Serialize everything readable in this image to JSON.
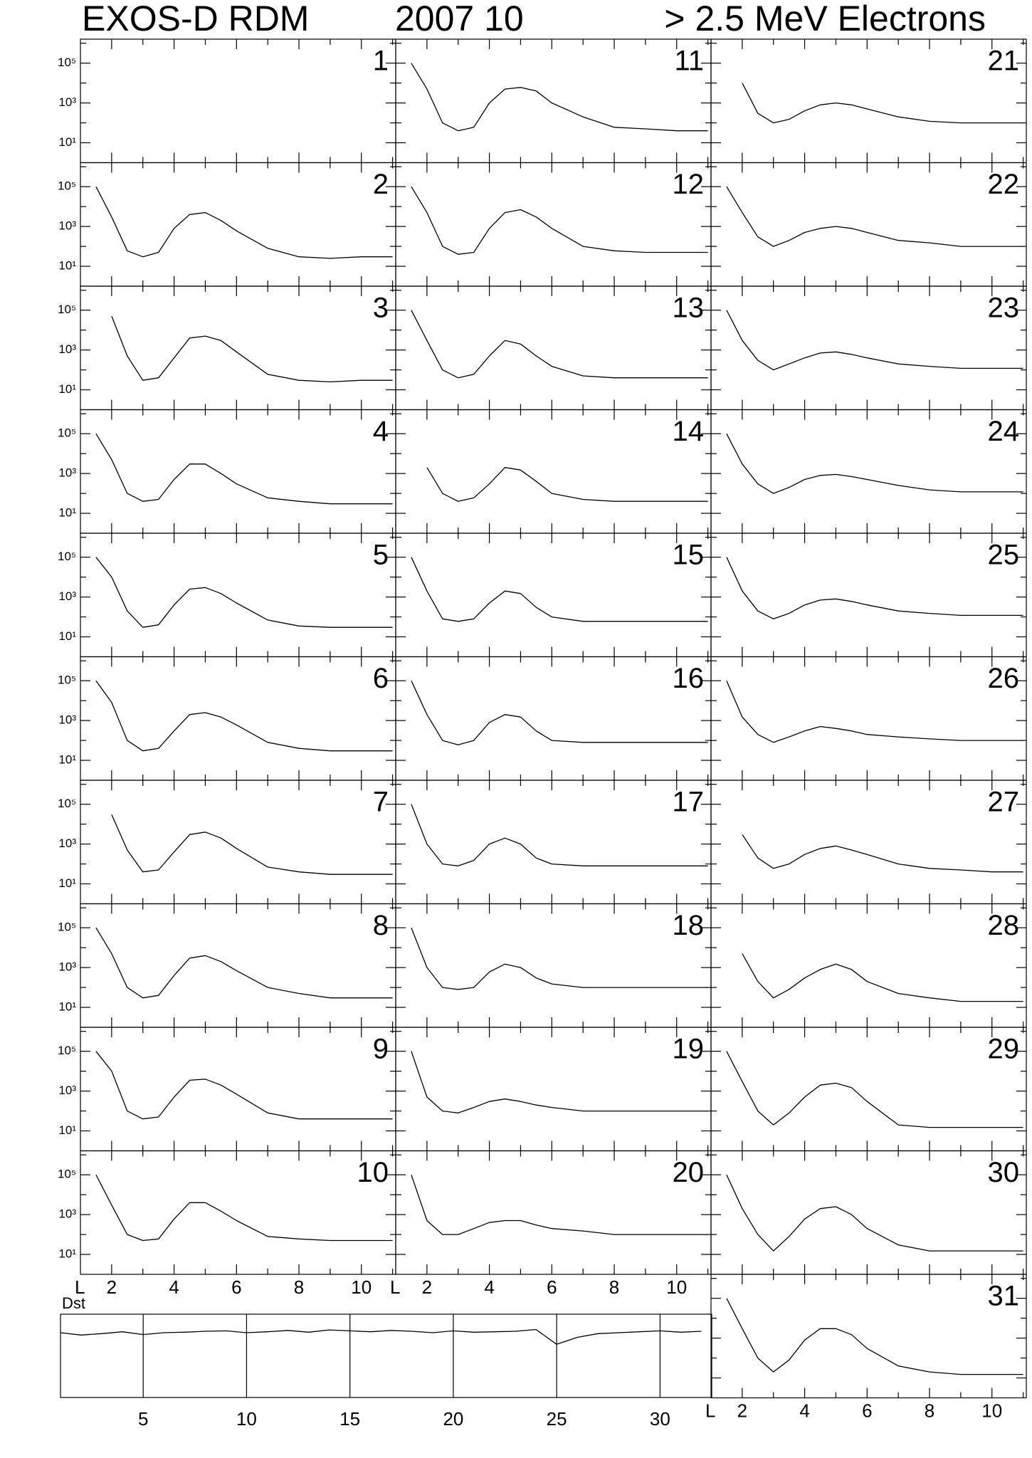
{
  "header": {
    "left": "EXOS-D RDM",
    "center": "2007   10",
    "right": "> 2.5  MeV Electrons"
  },
  "chart_data": {
    "type": "line",
    "xlabel": "L",
    "y_log": true,
    "color": "#000000",
    "xlim": [
      1,
      11.1
    ],
    "xticks": [
      2,
      4,
      6,
      8,
      10
    ],
    "minor_xticks": [
      3,
      5,
      7,
      9,
      11
    ],
    "ylim": [
      1,
      1600000
    ],
    "yticks": [
      {
        "value": 10,
        "label": "10¹"
      },
      {
        "value": 1000,
        "label": "10³"
      },
      {
        "value": 100000,
        "label": "10⁵"
      }
    ],
    "minor_yticks": [
      100,
      10000,
      1000000
    ],
    "x": [
      1.5,
      2,
      2.5,
      3,
      3.5,
      4,
      4.5,
      5,
      5.5,
      6,
      7,
      8,
      9,
      10,
      11
    ],
    "panels": [
      {
        "title": "1",
        "values": [
          null,
          null,
          null,
          null,
          null,
          null,
          null,
          null,
          null,
          null,
          null,
          null,
          null,
          null,
          null
        ]
      },
      {
        "title": "2",
        "values": [
          100000,
          3000,
          60,
          30,
          50,
          800,
          4000,
          5000,
          2000,
          600,
          80,
          30,
          25,
          30,
          30
        ]
      },
      {
        "title": "3",
        "values": [
          null,
          50000,
          500,
          30,
          40,
          400,
          4000,
          5000,
          3000,
          800,
          60,
          30,
          25,
          30,
          30
        ]
      },
      {
        "title": "4",
        "values": [
          100000,
          5000,
          100,
          40,
          50,
          500,
          3000,
          3000,
          1000,
          300,
          60,
          40,
          30,
          30,
          30
        ]
      },
      {
        "title": "5",
        "values": [
          100000,
          10000,
          200,
          30,
          40,
          400,
          2500,
          3000,
          1500,
          500,
          70,
          35,
          30,
          30,
          30
        ]
      },
      {
        "title": "6",
        "values": [
          100000,
          8000,
          100,
          30,
          40,
          300,
          2000,
          2500,
          1500,
          600,
          80,
          40,
          30,
          30,
          30
        ]
      },
      {
        "title": "7",
        "values": [
          null,
          30000,
          500,
          40,
          50,
          400,
          3000,
          4000,
          2000,
          600,
          70,
          40,
          30,
          30,
          30
        ]
      },
      {
        "title": "8",
        "values": [
          100000,
          5000,
          100,
          30,
          40,
          400,
          3000,
          4000,
          2000,
          700,
          100,
          50,
          30,
          30,
          30
        ]
      },
      {
        "title": "9",
        "values": [
          100000,
          10000,
          100,
          40,
          50,
          500,
          3500,
          4000,
          2000,
          700,
          80,
          40,
          40,
          40,
          40
        ]
      },
      {
        "title": "10",
        "values": [
          100000,
          3000,
          100,
          50,
          60,
          600,
          4000,
          4000,
          1500,
          500,
          80,
          60,
          50,
          50,
          50
        ]
      },
      {
        "title": "11",
        "values": [
          100000,
          5000,
          100,
          40,
          60,
          1000,
          5000,
          6000,
          4000,
          1000,
          200,
          60,
          50,
          40,
          40
        ]
      },
      {
        "title": "12",
        "values": [
          100000,
          5000,
          100,
          40,
          50,
          800,
          5000,
          7000,
          3000,
          800,
          100,
          60,
          50,
          50,
          50
        ]
      },
      {
        "title": "13",
        "values": [
          100000,
          3000,
          100,
          40,
          60,
          500,
          3000,
          2000,
          500,
          150,
          50,
          40,
          40,
          40,
          40
        ]
      },
      {
        "title": "14",
        "values": [
          null,
          2000,
          100,
          40,
          60,
          300,
          2000,
          1500,
          400,
          100,
          50,
          40,
          40,
          40,
          40
        ]
      },
      {
        "title": "15",
        "values": [
          100000,
          2000,
          80,
          60,
          80,
          500,
          2000,
          1500,
          300,
          100,
          60,
          60,
          60,
          60,
          60
        ]
      },
      {
        "title": "16",
        "values": [
          100000,
          2000,
          100,
          60,
          100,
          800,
          2000,
          1500,
          300,
          100,
          80,
          80,
          80,
          80,
          80
        ]
      },
      {
        "title": "17",
        "values": [
          100000,
          1000,
          100,
          80,
          150,
          1000,
          2000,
          1000,
          200,
          100,
          80,
          80,
          80,
          80,
          80
        ]
      },
      {
        "title": "18",
        "values": [
          100000,
          1000,
          100,
          80,
          100,
          600,
          1500,
          1000,
          300,
          150,
          100,
          100,
          100,
          100,
          100
        ]
      },
      {
        "title": "19",
        "values": [
          100000,
          500,
          100,
          80,
          150,
          300,
          400,
          300,
          200,
          150,
          100,
          100,
          100,
          100,
          100
        ]
      },
      {
        "title": "20",
        "values": [
          100000,
          500,
          100,
          100,
          200,
          400,
          500,
          500,
          300,
          200,
          150,
          100,
          100,
          100,
          100
        ]
      },
      {
        "title": "21",
        "values": [
          null,
          10000,
          300,
          100,
          150,
          400,
          800,
          1000,
          800,
          500,
          200,
          120,
          100,
          100,
          100
        ]
      },
      {
        "title": "22",
        "values": [
          100000,
          5000,
          300,
          100,
          200,
          500,
          800,
          1000,
          800,
          500,
          200,
          150,
          100,
          100,
          100
        ]
      },
      {
        "title": "23",
        "values": [
          100000,
          3000,
          300,
          100,
          200,
          400,
          700,
          800,
          600,
          400,
          200,
          150,
          120,
          120,
          120
        ]
      },
      {
        "title": "24",
        "values": [
          100000,
          3000,
          300,
          100,
          200,
          500,
          800,
          900,
          700,
          500,
          250,
          150,
          120,
          120,
          120
        ]
      },
      {
        "title": "25",
        "values": [
          100000,
          2000,
          200,
          80,
          150,
          400,
          700,
          800,
          600,
          400,
          200,
          150,
          120,
          120,
          120
        ]
      },
      {
        "title": "26",
        "values": [
          100000,
          1500,
          200,
          80,
          150,
          300,
          500,
          400,
          300,
          200,
          150,
          120,
          100,
          100,
          100
        ]
      },
      {
        "title": "27",
        "values": [
          null,
          3000,
          200,
          60,
          100,
          300,
          600,
          800,
          500,
          300,
          100,
          60,
          50,
          40,
          40
        ]
      },
      {
        "title": "28",
        "values": [
          null,
          5000,
          200,
          30,
          80,
          300,
          800,
          1500,
          800,
          200,
          50,
          30,
          20,
          20,
          20
        ]
      },
      {
        "title": "29",
        "values": [
          100000,
          3000,
          100,
          20,
          80,
          500,
          2000,
          2500,
          1500,
          300,
          20,
          15,
          15,
          15,
          15
        ]
      },
      {
        "title": "30",
        "values": [
          100000,
          2000,
          100,
          15,
          80,
          600,
          2000,
          2500,
          1000,
          200,
          30,
          15,
          15,
          15,
          15
        ]
      },
      {
        "title": "31",
        "values": [
          100000,
          3000,
          100,
          20,
          80,
          800,
          3000,
          3000,
          1500,
          300,
          40,
          20,
          15,
          15,
          15
        ]
      }
    ],
    "dst": {
      "type": "line",
      "ylabel": "Dst",
      "color": "#000000",
      "xlim": [
        1,
        32.5
      ],
      "ylim": [
        -150,
        30
      ],
      "xticks": [
        5,
        10,
        15,
        20,
        25,
        30
      ],
      "x": [
        1,
        2,
        3,
        4,
        5,
        6,
        7,
        8,
        9,
        10,
        11,
        12,
        13,
        14,
        15,
        16,
        17,
        18,
        19,
        20,
        21,
        22,
        23,
        24,
        25,
        26,
        27,
        28,
        29,
        30,
        31,
        32
      ],
      "values": [
        -10,
        -15,
        -12,
        -8,
        -14,
        -10,
        -9,
        -7,
        -6,
        -10,
        -8,
        -5,
        -9,
        -4,
        -6,
        -8,
        -5,
        -7,
        -10,
        -6,
        -9,
        -8,
        -7,
        -3,
        -35,
        -20,
        -12,
        -10,
        -8,
        -6,
        -9,
        -7
      ]
    }
  }
}
